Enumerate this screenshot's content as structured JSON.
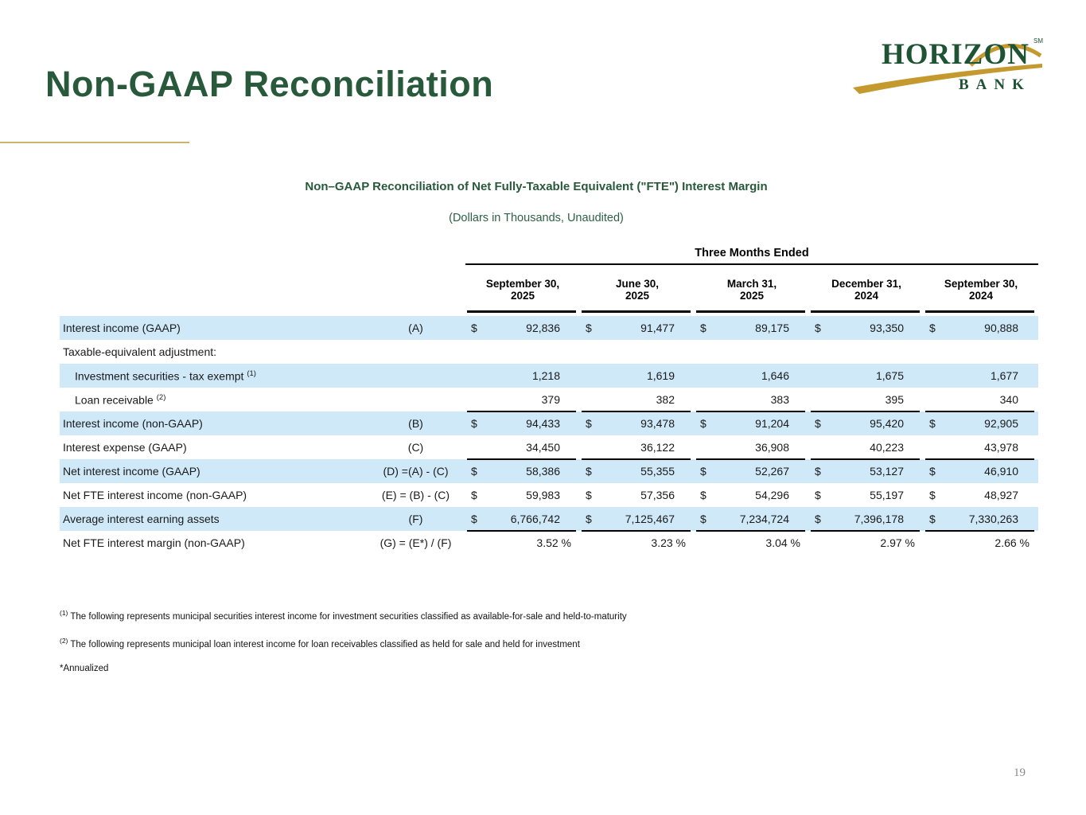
{
  "header": {
    "title": "Non-GAAP Reconciliation"
  },
  "logo": {
    "brand": "HORIZON",
    "trademark": "SM",
    "word": "BANK"
  },
  "table": {
    "title": "Non–GAAP Reconciliation of Net Fully-Taxable Equivalent (\"FTE\") Interest Margin",
    "subtitle": "(Dollars in Thousands, Unaudited)",
    "group_header": "Three Months Ended",
    "currency_symbol": "$",
    "columns": [
      {
        "line1": "September 30,",
        "line2": "2025"
      },
      {
        "line1": "June 30,",
        "line2": "2025"
      },
      {
        "line1": "March 31,",
        "line2": "2025"
      },
      {
        "line1": "December 31,",
        "line2": "2024"
      },
      {
        "line1": "September 30,",
        "line2": "2024"
      }
    ],
    "rows": [
      {
        "label": "Interest income (GAAP)",
        "sup": "",
        "formula": "(A)",
        "dollar": true,
        "percent": false,
        "indent": false,
        "shaded": true,
        "rule_below": false,
        "values": [
          "92,836",
          "91,477",
          "89,175",
          "93,350",
          "90,888"
        ]
      },
      {
        "label": "Taxable-equivalent adjustment:",
        "sup": "",
        "formula": "",
        "dollar": false,
        "percent": false,
        "indent": false,
        "shaded": false,
        "rule_below": false,
        "values": [
          "",
          "",
          "",
          "",
          ""
        ]
      },
      {
        "label": "Investment securities - tax exempt",
        "sup": "(1)",
        "formula": "",
        "dollar": false,
        "percent": false,
        "indent": true,
        "shaded": true,
        "rule_below": false,
        "values": [
          "1,218",
          "1,619",
          "1,646",
          "1,675",
          "1,677"
        ]
      },
      {
        "label": "Loan receivable",
        "sup": "(2)",
        "formula": "",
        "dollar": false,
        "percent": false,
        "indent": true,
        "shaded": false,
        "rule_below": true,
        "values": [
          "379",
          "382",
          "383",
          "395",
          "340"
        ]
      },
      {
        "label": "Interest income (non-GAAP)",
        "sup": "",
        "formula": "(B)",
        "dollar": true,
        "percent": false,
        "indent": false,
        "shaded": true,
        "rule_below": false,
        "values": [
          "94,433",
          "93,478",
          "91,204",
          "95,420",
          "92,905"
        ]
      },
      {
        "label": "Interest expense (GAAP)",
        "sup": "",
        "formula": "(C)",
        "dollar": false,
        "percent": false,
        "indent": false,
        "shaded": false,
        "rule_below": true,
        "values": [
          "34,450",
          "36,122",
          "36,908",
          "40,223",
          "43,978"
        ]
      },
      {
        "label": "Net interest income (GAAP)",
        "sup": "",
        "formula": "(D) =(A) - (C)",
        "dollar": true,
        "percent": false,
        "indent": false,
        "shaded": true,
        "rule_below": false,
        "values": [
          "58,386",
          "55,355",
          "52,267",
          "53,127",
          "46,910"
        ]
      },
      {
        "label": "Net FTE interest income (non-GAAP)",
        "sup": "",
        "formula": "(E) = (B) - (C)",
        "dollar": true,
        "percent": false,
        "indent": false,
        "shaded": false,
        "rule_below": false,
        "values": [
          "59,983",
          "57,356",
          "54,296",
          "55,197",
          "48,927"
        ]
      },
      {
        "label": "Average interest earning assets",
        "sup": "",
        "formula": "(F)",
        "dollar": true,
        "percent": false,
        "indent": false,
        "shaded": true,
        "rule_below": true,
        "values": [
          "6,766,742",
          "7,125,467",
          "7,234,724",
          "7,396,178",
          "7,330,263"
        ]
      },
      {
        "label": "Net FTE interest margin (non-GAAP)",
        "sup": "",
        "formula": "(G) = (E*) / (F)",
        "dollar": false,
        "percent": true,
        "indent": false,
        "shaded": false,
        "rule_below": false,
        "values": [
          "3.52 %",
          "3.23 %",
          "3.04 %",
          "2.97 %",
          "2.66 %"
        ]
      }
    ]
  },
  "footnotes": [
    {
      "sup": "(1)",
      "text": "The following represents municipal securities interest income for investment securities classified as available-for-sale and held-to-maturity"
    },
    {
      "sup": "(2)",
      "text": "The following represents municipal loan interest income for loan receivables classified as held for sale and held for investment"
    },
    {
      "sup": "",
      "text": "*Annualized"
    }
  ],
  "footer": {
    "page_number": "19"
  },
  "colors": {
    "brand_green": "#28593a",
    "logo_green": "#1e5333",
    "brand_gold": "#c49a2e",
    "title_rule_gold": "#cdb46c",
    "row_highlight_blue": "#cfe9f8",
    "text_black": "#1a1a1a",
    "page_number_gray": "#8a8a8a"
  }
}
